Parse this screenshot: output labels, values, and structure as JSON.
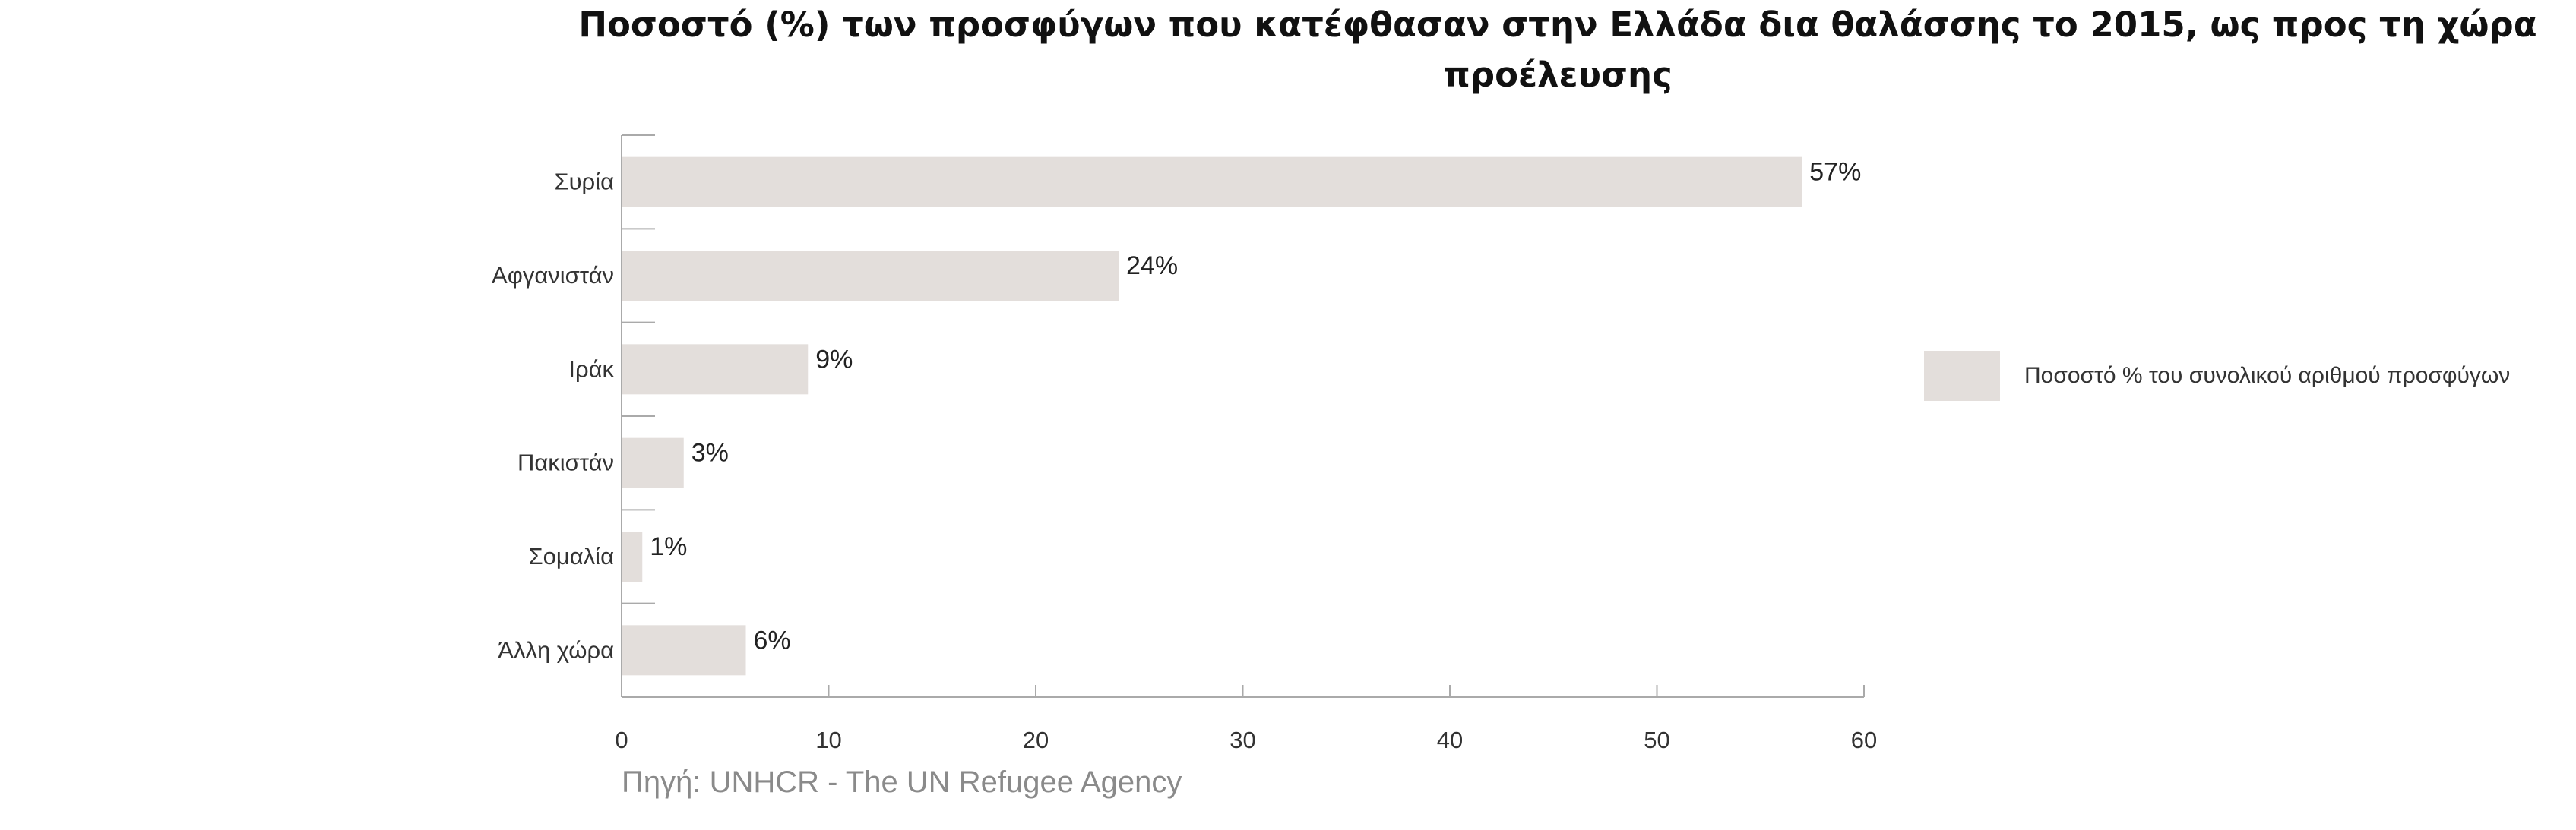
{
  "title": "Ποσοστό (%) των προσφύγων που κατέφθασαν στην Ελλάδα δια θαλάσσης  το 2015, ως προς τη χώρα προέλευσης",
  "source": "Πηγή: UNHCR - The UN Refugee Agency",
  "colors": {
    "bar": "#e3dedb",
    "axis": "#aaaaaa",
    "text": "#333333"
  },
  "chart_data": {
    "type": "bar",
    "orientation": "horizontal",
    "title": "Ποσοστό (%) των προσφύγων που κατέφθασαν στην Ελλάδα δια θαλάσσης  το 2015, ως προς τη χώρα προέλευσης",
    "categories": [
      "Συρία",
      "Αφγανιστάν",
      "Ιράκ",
      "Πακιστάν",
      "Σομαλία",
      "Άλλη χώρα"
    ],
    "series": [
      {
        "name": "Ποσοστό % του συνολικού αριθμού προσφύγων",
        "values": [
          57,
          24,
          9,
          3,
          1,
          6
        ],
        "labels": [
          "57%",
          "24%",
          "9%",
          "3%",
          "1%",
          "6%"
        ]
      }
    ],
    "xlim": [
      0,
      60
    ],
    "xticks": [
      0,
      10,
      20,
      30,
      40,
      50,
      60
    ],
    "grid": false,
    "legend": "right"
  }
}
